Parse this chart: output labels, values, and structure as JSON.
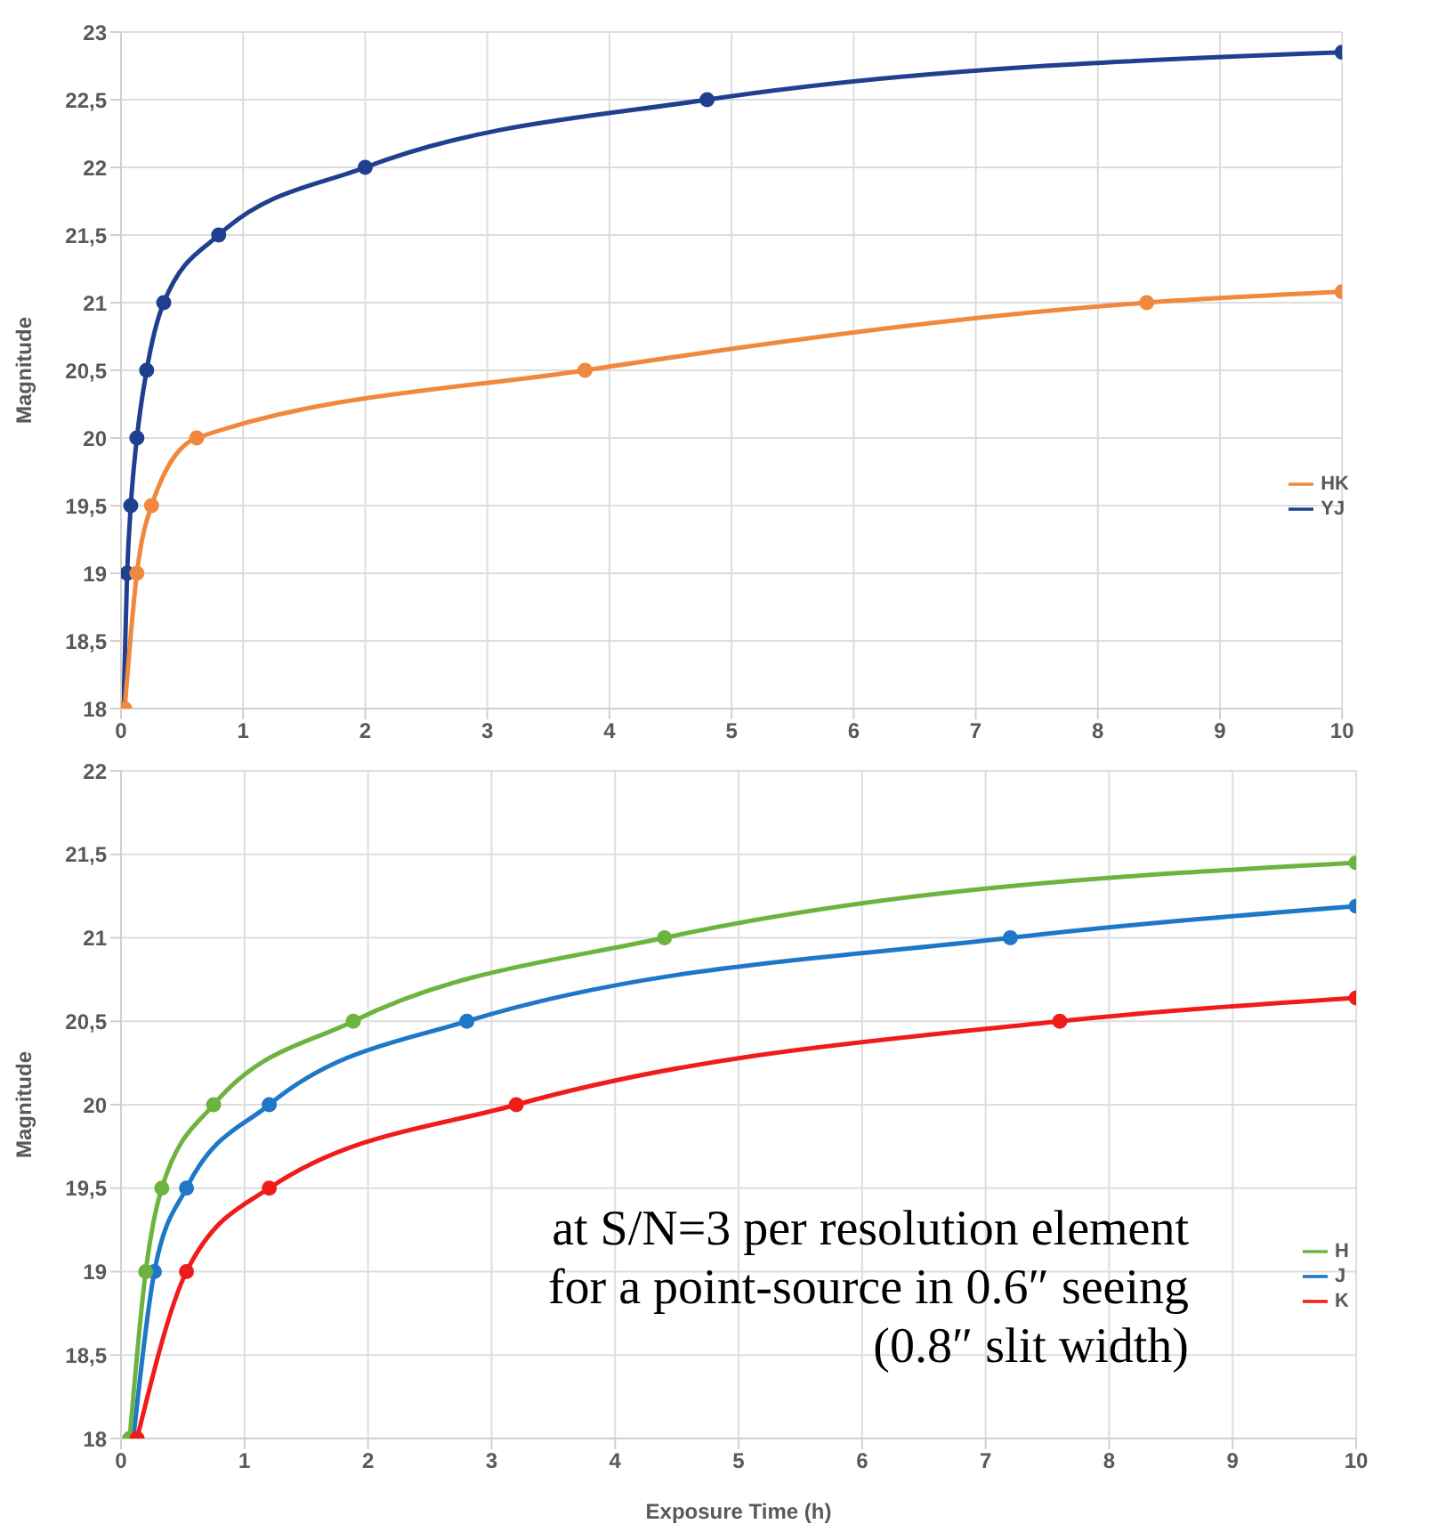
{
  "chart_data": [
    {
      "type": "line",
      "ylabel": "Magnitude",
      "xlim": [
        0,
        10
      ],
      "xticks": [
        0,
        1,
        2,
        3,
        4,
        5,
        6,
        7,
        8,
        9,
        10
      ],
      "ylim": [
        18,
        23
      ],
      "yticks": [
        18,
        {
          "value": 18.5,
          "label": "18,5"
        },
        19,
        {
          "value": 19.5,
          "label": "19,5"
        },
        20,
        {
          "value": 20.5,
          "label": "20,5"
        },
        21,
        {
          "value": 21.5,
          "label": "21,5"
        },
        22,
        {
          "value": 22.5,
          "label": "22,5"
        },
        23
      ],
      "grid": true,
      "legend": "right",
      "marker": "circle",
      "line_style": "solid",
      "series": [
        {
          "name": "YJ",
          "color": "#1f3f8f",
          "x": [
            0.02,
            0.05,
            0.08,
            0.13,
            0.21,
            0.35,
            0.8,
            2,
            4.8,
            10
          ],
          "values": [
            18,
            19,
            19.5,
            20,
            20.5,
            21,
            21.5,
            22,
            22.5,
            22.85
          ]
        },
        {
          "name": "HK",
          "color": "#f0883e",
          "x": [
            0.03,
            0.13,
            0.25,
            0.62,
            3.8,
            8.4,
            10
          ],
          "values": [
            18,
            19,
            19.5,
            20,
            20.5,
            21,
            21.08
          ]
        }
      ]
    },
    {
      "type": "line",
      "ylabel": "Magnitude",
      "xlabel": "Exposure Time (h)",
      "xlim": [
        0,
        10
      ],
      "xticks": [
        0,
        1,
        2,
        3,
        4,
        5,
        6,
        7,
        8,
        9,
        10
      ],
      "ylim": [
        18,
        22
      ],
      "yticks": [
        18,
        {
          "value": 18.5,
          "label": "18,5"
        },
        19,
        {
          "value": 19.5,
          "label": "19,5"
        },
        20,
        {
          "value": 20.5,
          "label": "20,5"
        },
        21,
        {
          "value": 21.5,
          "label": "21,5"
        },
        22
      ],
      "grid": true,
      "legend": "right",
      "marker": "circle",
      "line_style": "solid",
      "annotations": [
        "at S/N=3 per resolution element",
        "for a point-source in 0.6″ seeing",
        "(0.8″ slit width)"
      ],
      "series": [
        {
          "name": "J",
          "color": "#1f77c8",
          "x": [
            0.1,
            0.27,
            0.53,
            1.2,
            2.8,
            7.2,
            10
          ],
          "values": [
            18,
            19,
            19.5,
            20,
            20.5,
            21,
            21.19
          ]
        },
        {
          "name": "H",
          "color": "#6db33f",
          "x": [
            0.07,
            0.2,
            0.33,
            0.75,
            1.88,
            4.4,
            10
          ],
          "values": [
            18,
            19,
            19.5,
            20,
            20.5,
            21,
            21.45
          ]
        },
        {
          "name": "K",
          "color": "#f01c1c",
          "x": [
            0.13,
            0.53,
            1.2,
            3.2,
            7.6,
            10
          ],
          "values": [
            18,
            19,
            19.5,
            20,
            20.5,
            20.64
          ]
        }
      ]
    }
  ]
}
